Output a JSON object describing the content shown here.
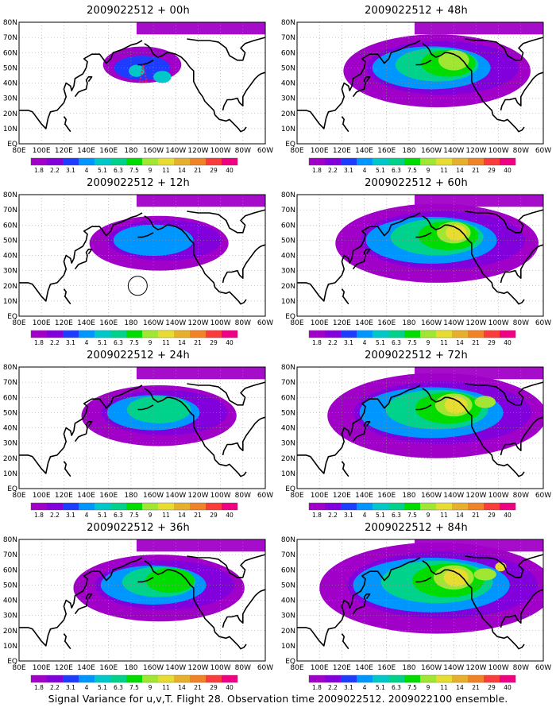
{
  "figure": {
    "caption": "Signal Variance for u,v,T. Flight 28. Observation time 2009022512. 2009022100 ensemble."
  },
  "axes": {
    "x_tick_labels": [
      "80E",
      "100E",
      "120E",
      "140E",
      "160E",
      "180",
      "160W",
      "140W",
      "120W",
      "100W",
      "80W",
      "60W"
    ],
    "y_tick_labels": [
      "EQ",
      "10N",
      "20N",
      "30N",
      "40N",
      "50N",
      "60N",
      "70N",
      "80N"
    ]
  },
  "colorbar": {
    "labels": [
      "1.8",
      "2.2",
      "3.1",
      "4",
      "5.1",
      "6.3",
      "7.5",
      "9",
      "11",
      "14",
      "21",
      "29",
      "40"
    ],
    "colors": [
      "#a000c8",
      "#8200dc",
      "#1e3cff",
      "#0096ff",
      "#00c8c8",
      "#00d28c",
      "#00dc00",
      "#a0e632",
      "#e6dc32",
      "#e6af2d",
      "#f08228",
      "#fa3c3c",
      "#f00082"
    ]
  },
  "panels": [
    {
      "title": "2009022512 + 00h",
      "lead_hours": 0
    },
    {
      "title": "2009022512 + 48h",
      "lead_hours": 48
    },
    {
      "title": "2009022512 + 12h",
      "lead_hours": 12
    },
    {
      "title": "2009022512 + 60h",
      "lead_hours": 60
    },
    {
      "title": "2009022512 + 24h",
      "lead_hours": 24
    },
    {
      "title": "2009022512 + 72h",
      "lead_hours": 72
    },
    {
      "title": "2009022512 + 36h",
      "lead_hours": 36
    },
    {
      "title": "2009022512 + 84h",
      "lead_hours": 84
    }
  ]
}
